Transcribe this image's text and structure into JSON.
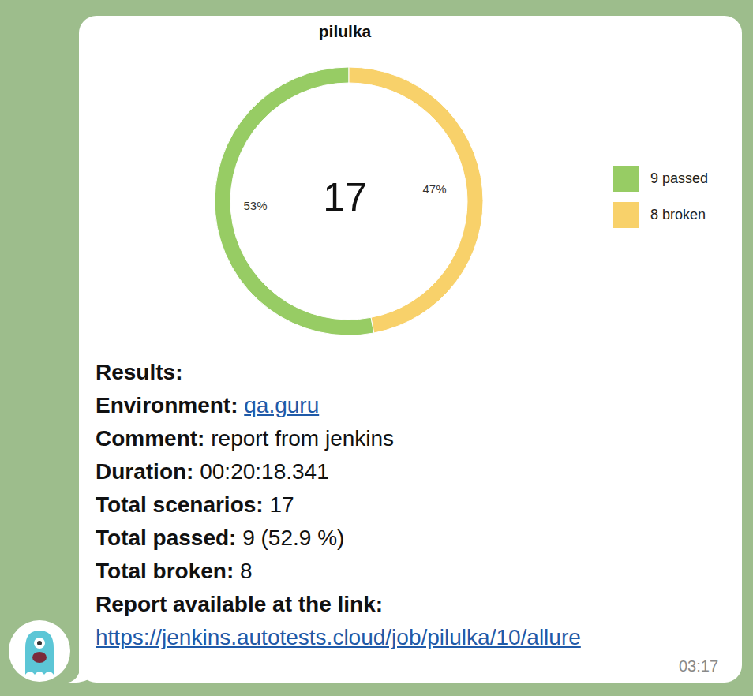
{
  "chart_data": {
    "type": "pie",
    "title": "pilulka",
    "total": 17,
    "categories": [
      "9 passed",
      "8 broken"
    ],
    "values": [
      53,
      47
    ],
    "value_labels": [
      "53%",
      "47%"
    ],
    "colors": [
      "#97cc64",
      "#f8d16a"
    ],
    "legend": "right"
  },
  "message": {
    "heading": "Results:",
    "fields": [
      {
        "label": "Environment:",
        "value": "qa.guru",
        "link": true
      },
      {
        "label": "Comment:",
        "value": "report from jenkins"
      },
      {
        "label": "Duration:",
        "value": "00:20:18.341"
      },
      {
        "label": "Total scenarios:",
        "value": "17"
      },
      {
        "label": "Total passed:",
        "value": "9 (52.9 %)"
      },
      {
        "label": "Total broken:",
        "value": "8"
      }
    ],
    "link_label": "Report available at the link:",
    "link": "https://jenkins.autotests.cloud/job/pilulka/10/allure",
    "time": "03:17"
  }
}
